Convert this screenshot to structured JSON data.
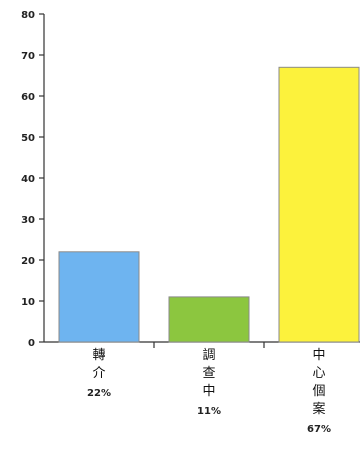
{
  "chart_data": {
    "type": "bar",
    "categories": [
      "轉介",
      "調查中",
      "中心個案"
    ],
    "category_label_lines": [
      [
        "轉",
        "介"
      ],
      [
        "調",
        "查",
        "中"
      ],
      [
        "中",
        "心",
        "個",
        "案"
      ]
    ],
    "values": [
      22,
      11,
      67
    ],
    "percent_labels": [
      "22%",
      "11%",
      "67%"
    ],
    "bar_colors": [
      "#6eb4f0",
      "#8cc63f",
      "#fcf23c"
    ],
    "bar_edge_color": "#8a8a8a",
    "ylim": [
      0,
      80
    ],
    "yticks": [
      0,
      10,
      20,
      30,
      40,
      50,
      60,
      70,
      80
    ],
    "title": "",
    "xlabel": "",
    "ylabel": "",
    "grid": false,
    "legend": "none"
  }
}
